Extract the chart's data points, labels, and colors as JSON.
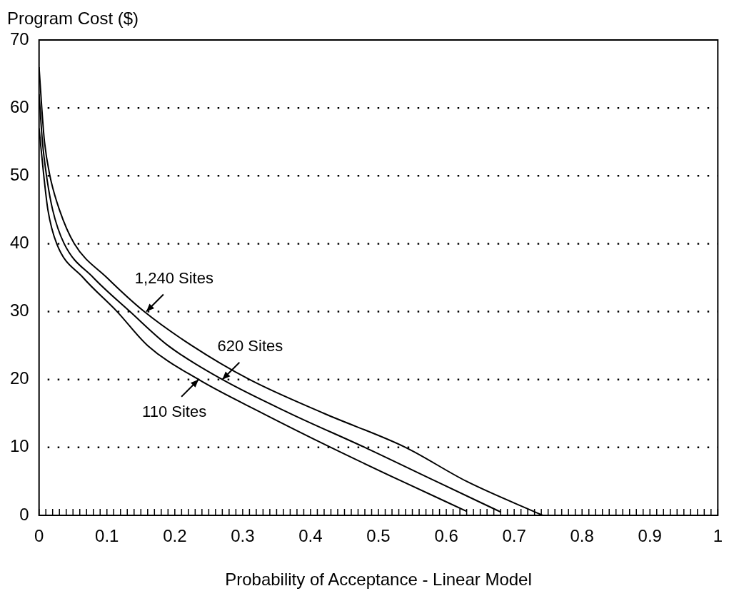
{
  "chart_data": {
    "type": "line",
    "xlabel": "Probability of Acceptance - Linear Model",
    "ylabel": "Program Cost ($)",
    "series": [
      {
        "x": [
          0,
          0.004,
          0.008,
          0.016,
          0.03,
          0.052,
          0.1,
          0.155,
          0.225,
          0.31,
          0.42,
          0.54,
          0.63,
          0.742
        ],
        "values": [
          66,
          60,
          55,
          50,
          45,
          40,
          35,
          30,
          25,
          20,
          15,
          10,
          5,
          0
        ],
        "color": "#000000"
      },
      {
        "x": [
          0,
          0.005,
          0.011,
          0.02,
          0.037,
          0.08,
          0.134,
          0.19,
          0.27,
          0.37,
          0.48,
          0.585,
          0.68
        ],
        "values": [
          62,
          55,
          50,
          45,
          40,
          35,
          30,
          25,
          20,
          15,
          10,
          5,
          0.5
        ],
        "color": "#000000"
      },
      {
        "x": [
          0,
          0.007,
          0.013,
          0.026,
          0.065,
          0.115,
          0.16,
          0.235,
          0.33,
          0.43,
          0.535,
          0.63
        ],
        "values": [
          57,
          50,
          45,
          40,
          35,
          30,
          25,
          20,
          15,
          10,
          5,
          0.6
        ],
        "color": "#000000"
      }
    ],
    "annotations": [
      {
        "text": "1,240 Sites",
        "x": 0.158,
        "y": 30
      },
      {
        "text": "620 Sites",
        "x": 0.27,
        "y": 20
      },
      {
        "text": "110 Sites",
        "x": 0.235,
        "y": 20
      }
    ],
    "xlim": [
      0,
      1
    ],
    "ylim": [
      0,
      70
    ],
    "xticks": [
      0,
      {
        "value": 0.01,
        "label": null
      },
      {
        "value": 0.02,
        "label": null
      },
      {
        "value": 0.03,
        "label": null
      },
      {
        "value": 0.04,
        "label": null
      },
      {
        "value": 0.05,
        "label": null
      },
      {
        "value": 0.06,
        "label": null
      },
      {
        "value": 0.07,
        "label": null
      },
      {
        "value": 0.08,
        "label": null
      },
      {
        "value": 0.09,
        "label": null
      },
      0.1,
      {
        "value": 0.11,
        "label": null
      },
      {
        "value": 0.12,
        "label": null
      },
      {
        "value": 0.13,
        "label": null
      },
      {
        "value": 0.14,
        "label": null
      },
      {
        "value": 0.15,
        "label": null
      },
      {
        "value": 0.16,
        "label": null
      },
      {
        "value": 0.17,
        "label": null
      },
      {
        "value": 0.18,
        "label": null
      },
      {
        "value": 0.19,
        "label": null
      },
      0.2,
      {
        "value": 0.21,
        "label": null
      },
      {
        "value": 0.22,
        "label": null
      },
      {
        "value": 0.23,
        "label": null
      },
      {
        "value": 0.24,
        "label": null
      },
      {
        "value": 0.25,
        "label": null
      },
      {
        "value": 0.26,
        "label": null
      },
      {
        "value": 0.27,
        "label": null
      },
      {
        "value": 0.28,
        "label": null
      },
      {
        "value": 0.29,
        "label": null
      },
      0.3,
      {
        "value": 0.31,
        "label": null
      },
      {
        "value": 0.32,
        "label": null
      },
      {
        "value": 0.33,
        "label": null
      },
      {
        "value": 0.34,
        "label": null
      },
      {
        "value": 0.35,
        "label": null
      },
      {
        "value": 0.36,
        "label": null
      },
      {
        "value": 0.37,
        "label": null
      },
      {
        "value": 0.38,
        "label": null
      },
      {
        "value": 0.39,
        "label": null
      },
      0.4,
      {
        "value": 0.41,
        "label": null
      },
      {
        "value": 0.42,
        "label": null
      },
      {
        "value": 0.43,
        "label": null
      },
      {
        "value": 0.44,
        "label": null
      },
      {
        "value": 0.45,
        "label": null
      },
      {
        "value": 0.46,
        "label": null
      },
      {
        "value": 0.47,
        "label": null
      },
      {
        "value": 0.48,
        "label": null
      },
      {
        "value": 0.49,
        "label": null
      },
      0.5,
      {
        "value": 0.51,
        "label": null
      },
      {
        "value": 0.52,
        "label": null
      },
      {
        "value": 0.53,
        "label": null
      },
      {
        "value": 0.54,
        "label": null
      },
      {
        "value": 0.55,
        "label": null
      },
      {
        "value": 0.56,
        "label": null
      },
      {
        "value": 0.57,
        "label": null
      },
      {
        "value": 0.58,
        "label": null
      },
      {
        "value": 0.59,
        "label": null
      },
      0.6,
      {
        "value": 0.61,
        "label": null
      },
      {
        "value": 0.62,
        "label": null
      },
      {
        "value": 0.63,
        "label": null
      },
      {
        "value": 0.64,
        "label": null
      },
      {
        "value": 0.65,
        "label": null
      },
      {
        "value": 0.66,
        "label": null
      },
      {
        "value": 0.67,
        "label": null
      },
      {
        "value": 0.68,
        "label": null
      },
      {
        "value": 0.69,
        "label": null
      },
      0.7,
      {
        "value": 0.71,
        "label": null
      },
      {
        "value": 0.72,
        "label": null
      },
      {
        "value": 0.73,
        "label": null
      },
      {
        "value": 0.74,
        "label": null
      },
      {
        "value": 0.75,
        "label": null
      },
      {
        "value": 0.76,
        "label": null
      },
      {
        "value": 0.77,
        "label": null
      },
      {
        "value": 0.78,
        "label": null
      },
      {
        "value": 0.79,
        "label": null
      },
      0.8,
      {
        "value": 0.81,
        "label": null
      },
      {
        "value": 0.82,
        "label": null
      },
      {
        "value": 0.83,
        "label": null
      },
      {
        "value": 0.84,
        "label": null
      },
      {
        "value": 0.85,
        "label": null
      },
      {
        "value": 0.86,
        "label": null
      },
      {
        "value": 0.87,
        "label": null
      },
      {
        "value": 0.88,
        "label": null
      },
      {
        "value": 0.89,
        "label": null
      },
      0.9,
      {
        "value": 0.91,
        "label": null
      },
      {
        "value": 0.92,
        "label": null
      },
      {
        "value": 0.93,
        "label": null
      },
      {
        "value": 0.94,
        "label": null
      },
      {
        "value": 0.95,
        "label": null
      },
      {
        "value": 0.96,
        "label": null
      },
      {
        "value": 0.97,
        "label": null
      },
      {
        "value": 0.98,
        "label": null
      },
      {
        "value": 0.99,
        "label": null
      },
      1
    ],
    "yticks": [
      0,
      10,
      20,
      30,
      40,
      50,
      60,
      70
    ],
    "grid": "y",
    "legend": false,
    "marker": "none",
    "line_style": "solid"
  }
}
